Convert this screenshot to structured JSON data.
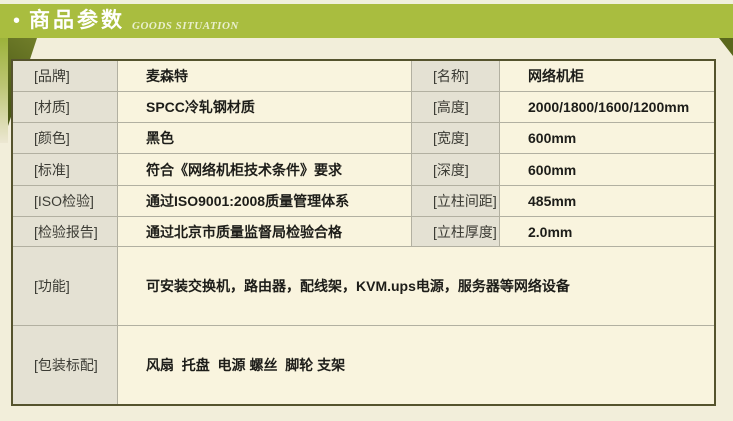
{
  "header": {
    "bullet": "•",
    "title": "商品参数",
    "subtitle": "GOODS SITUATION"
  },
  "colors": {
    "header_green": "#a9bd3f",
    "fold_dark_olive": "#51601a",
    "label_cell_bg": "#e4e1d3",
    "value_cell_bg": "#f9f4de",
    "page_bg": "#f2eeda",
    "table_border": "#55532d"
  },
  "table": {
    "paired_rows": [
      {
        "left_label": "[品牌]",
        "left_value": "麦森特",
        "right_label": "[名称]",
        "right_value": "网络机柜"
      },
      {
        "left_label": "[材质]",
        "left_value": "SPCC冷轧钢材质",
        "right_label": "[高度]",
        "right_value": "2000/1800/1600/1200mm"
      },
      {
        "left_label": "[颜色]",
        "left_value": "黑色",
        "right_label": "[宽度]",
        "right_value": "600mm"
      },
      {
        "left_label": "[标准]",
        "left_value": "符合《网络机柜技术条件》要求",
        "right_label": "[深度]",
        "right_value": "600mm"
      },
      {
        "left_label": "[ISO检验]",
        "left_value": "通过ISO9001:2008质量管理体系",
        "right_label": "[立柱间距]",
        "right_value": "485mm"
      },
      {
        "left_label": "[检验报告]",
        "left_value": "通过北京市质量监督局检验合格",
        "right_label": "[立柱厚度]",
        "right_value": "2.0mm"
      }
    ],
    "full_rows": [
      {
        "label": "[功能]",
        "value": "可安装交换机，路由器，配线架，KVM.ups电源，服务器等网络设备"
      },
      {
        "label": "[包装标配]",
        "value": "风扇  托盘  电源 螺丝  脚轮 支架"
      }
    ]
  }
}
